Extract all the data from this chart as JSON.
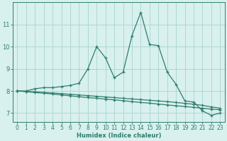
{
  "x": [
    0,
    1,
    2,
    3,
    4,
    5,
    6,
    7,
    8,
    9,
    10,
    11,
    12,
    13,
    14,
    15,
    16,
    17,
    18,
    19,
    20,
    21,
    22,
    23
  ],
  "line1": [
    8.0,
    8.0,
    8.1,
    8.15,
    8.15,
    8.2,
    8.25,
    8.35,
    9.0,
    10.0,
    9.5,
    8.6,
    8.85,
    10.5,
    11.55,
    10.1,
    10.05,
    8.85,
    8.3,
    7.55,
    7.5,
    7.1,
    6.9,
    7.0
  ],
  "line2": [
    8.0,
    7.97,
    7.93,
    7.9,
    7.86,
    7.82,
    7.78,
    7.74,
    7.7,
    7.67,
    7.63,
    7.6,
    7.56,
    7.52,
    7.48,
    7.45,
    7.41,
    7.37,
    7.33,
    7.3,
    7.26,
    7.22,
    7.18,
    7.15
  ],
  "line3": [
    8.0,
    7.98,
    7.96,
    7.93,
    7.91,
    7.88,
    7.85,
    7.82,
    7.79,
    7.76,
    7.73,
    7.7,
    7.67,
    7.64,
    7.61,
    7.58,
    7.55,
    7.52,
    7.48,
    7.44,
    7.4,
    7.35,
    7.28,
    7.22
  ],
  "line_color": "#2e7d6e",
  "bg_color": "#d8f0ee",
  "grid_color": "#aad4cf",
  "xlabel": "Humidex (Indice chaleur)",
  "ylim": [
    6.6,
    12.0
  ],
  "xlim_min": -0.5,
  "xlim_max": 23.5,
  "yticks": [
    7,
    8,
    9,
    10,
    11
  ],
  "xticks": [
    0,
    1,
    2,
    3,
    4,
    5,
    6,
    7,
    8,
    9,
    10,
    11,
    12,
    13,
    14,
    15,
    16,
    17,
    18,
    19,
    20,
    21,
    22,
    23
  ],
  "marker": "+",
  "markersize": 3.5,
  "linewidth": 0.9,
  "xlabel_fontsize": 6,
  "tick_fontsize": 5.5
}
